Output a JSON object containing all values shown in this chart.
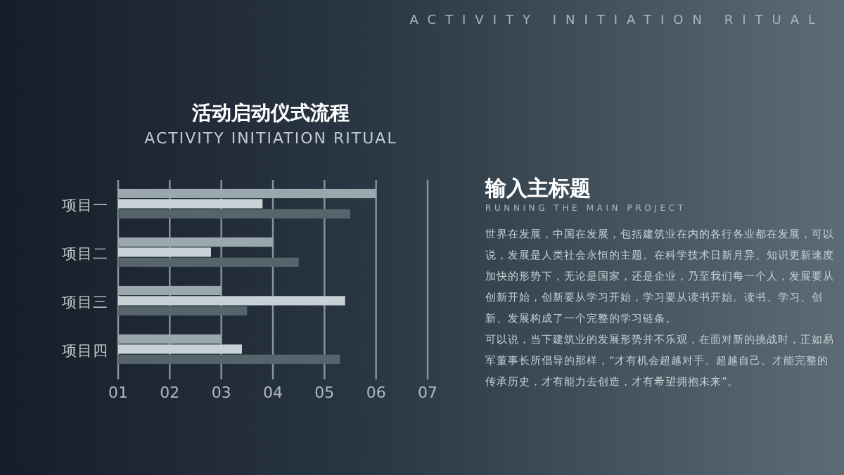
{
  "chart_data": {
    "type": "bar",
    "orientation": "horizontal",
    "title": "活动启动仪式流程",
    "subtitle": "ACTIVITY INITIATION RITUAL",
    "annotations": [
      "ACTIVITY INITIATION RITUAL",
      "输入主标题",
      "RUNNING THE MAIN PROJECT",
      "世界在发展，中国在发展，包括建筑业在内的各行各业都在发展，可以说，发展是人类社会永恒的主题。在科学技术日新月异、知识更新速度加快的形势下，无论是国家，还是企业，乃至我们每一个人，发展要从创新开始，创新要从学习开始，学习要从读书开始。读书、学习、创新、发展构成了一个完整的学习链条。",
      "可以说，当下建筑业的发展形势并不乐观，在面对新的挑战时，正如易军董事长所倡导的那样，“才有机会超越对手、超越自己、才能完整的传承历史，才有能力去创造，才有希望拥抱未来”。"
    ],
    "categories": [
      "项目一",
      "项目二",
      "项目三",
      "项目四"
    ],
    "series": [
      {
        "color": "#9aa7ad",
        "values": [
          6.0,
          4.0,
          3.0,
          3.0
        ]
      },
      {
        "color": "#c9d1d6",
        "values": [
          3.8,
          2.8,
          5.4,
          3.4
        ]
      },
      {
        "color": "#56656b",
        "values": [
          5.5,
          4.5,
          3.5,
          5.3
        ]
      }
    ],
    "xlim": [
      1,
      7
    ],
    "xticks": [
      {
        "value": 1,
        "label": "01"
      },
      {
        "value": 2,
        "label": "02"
      },
      {
        "value": 3,
        "label": "03"
      },
      {
        "value": 4,
        "label": "04"
      },
      {
        "value": 5,
        "label": "05"
      },
      {
        "value": 6,
        "label": "06"
      },
      {
        "value": 7,
        "label": "07"
      }
    ],
    "grid": "x"
  }
}
